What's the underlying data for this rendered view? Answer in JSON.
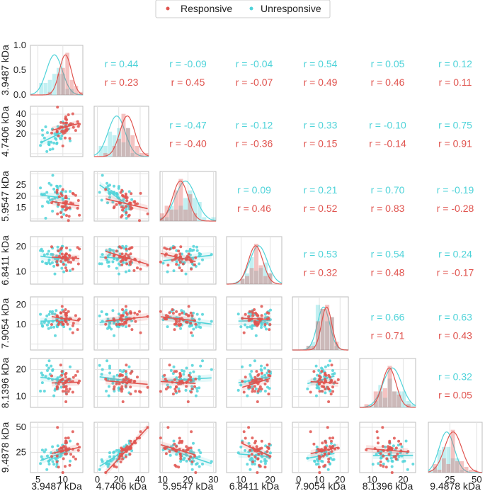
{
  "chart_data": {
    "type": "scatter",
    "title": "",
    "legend": {
      "position": "top-center",
      "entries": [
        {
          "name": "Responsive",
          "color": "#e0544f"
        },
        {
          "name": "Unresponsive",
          "color": "#4fd3d9"
        }
      ]
    },
    "variables": [
      {
        "label": "3.9487 kDa",
        "ticks": [
          5,
          10
        ],
        "range": [
          3.5,
          14.0
        ]
      },
      {
        "label": "4.7406 kDa",
        "ticks": [
          0,
          20,
          40
        ],
        "range": [
          -3,
          48
        ]
      },
      {
        "label": "5.9547 kDa",
        "ticks": [
          10,
          20,
          30
        ],
        "range": [
          9,
          31
        ]
      },
      {
        "label": "6.8411 kDa",
        "ticks": [
          10,
          20
        ],
        "range": [
          5,
          24
        ]
      },
      {
        "label": "7.9054 kDa",
        "ticks": [
          0,
          10,
          20
        ],
        "range": [
          -3,
          24
        ]
      },
      {
        "label": "8.1396 kDa",
        "ticks": [
          10,
          20
        ],
        "range": [
          6,
          24
        ]
      },
      {
        "label": "9.4878 kDa",
        "ticks": [
          25,
          50
        ],
        "range": [
          5,
          55
        ]
      }
    ],
    "y_ticks": [
      [
        "0.0",
        "0.5",
        "1.0"
      ],
      [
        "20",
        "30",
        "40"
      ],
      [
        "15",
        "20",
        "25"
      ],
      [
        "10",
        "20"
      ],
      [
        "10",
        "20"
      ],
      [
        "10",
        "20"
      ],
      [
        "25",
        "50"
      ]
    ],
    "correlations": {
      "0-1": {
        "unresponsive": "r = 0.44",
        "responsive": "r = 0.23"
      },
      "0-2": {
        "unresponsive": "r = -0.09",
        "responsive": "r = 0.45"
      },
      "0-3": {
        "unresponsive": "r = -0.04",
        "responsive": "r = -0.07"
      },
      "0-4": {
        "unresponsive": "r = 0.54",
        "responsive": "r = 0.49"
      },
      "0-5": {
        "unresponsive": "r = 0.05",
        "responsive": "r = 0.46"
      },
      "0-6": {
        "unresponsive": "r = 0.12",
        "responsive": "r = 0.11"
      },
      "1-2": {
        "unresponsive": "r = -0.47",
        "responsive": "r = -0.40"
      },
      "1-3": {
        "unresponsive": "r = -0.12",
        "responsive": "r = -0.36"
      },
      "1-4": {
        "unresponsive": "r = 0.33",
        "responsive": "r = 0.15"
      },
      "1-5": {
        "unresponsive": "r = -0.10",
        "responsive": "r = -0.14"
      },
      "1-6": {
        "unresponsive": "r = 0.75",
        "responsive": "r = 0.91"
      },
      "2-3": {
        "unresponsive": "r = 0.09",
        "responsive": "r = 0.46"
      },
      "2-4": {
        "unresponsive": "r = 0.21",
        "responsive": "r = 0.52"
      },
      "2-5": {
        "unresponsive": "r = 0.70",
        "responsive": "r = 0.83"
      },
      "2-6": {
        "unresponsive": "r = -0.19",
        "responsive": "r = -0.28"
      },
      "3-4": {
        "unresponsive": "r = 0.53",
        "responsive": "r = 0.32"
      },
      "3-5": {
        "unresponsive": "r = 0.54",
        "responsive": "r = 0.48"
      },
      "3-6": {
        "unresponsive": "r = 0.24",
        "responsive": "r = -0.17"
      },
      "4-5": {
        "unresponsive": "r = 0.66",
        "responsive": "r = 0.71"
      },
      "4-6": {
        "unresponsive": "r = 0.63",
        "responsive": "r = 0.43"
      },
      "5-6": {
        "unresponsive": "r = 0.32",
        "responsive": "r = 0.05"
      }
    },
    "group_stats": {
      "responsive": {
        "means": [
          10.5,
          28,
          17,
          15,
          13.5,
          15.5,
          28
        ],
        "sds": [
          1.2,
          7,
          3,
          2.5,
          2.5,
          2.2,
          8
        ]
      },
      "unresponsive": {
        "means": [
          8.3,
          18,
          19,
          16,
          12,
          16.5,
          22
        ],
        "sds": [
          1.6,
          8,
          4,
          3,
          3,
          3,
          7
        ]
      }
    },
    "points_per_group": 40
  }
}
